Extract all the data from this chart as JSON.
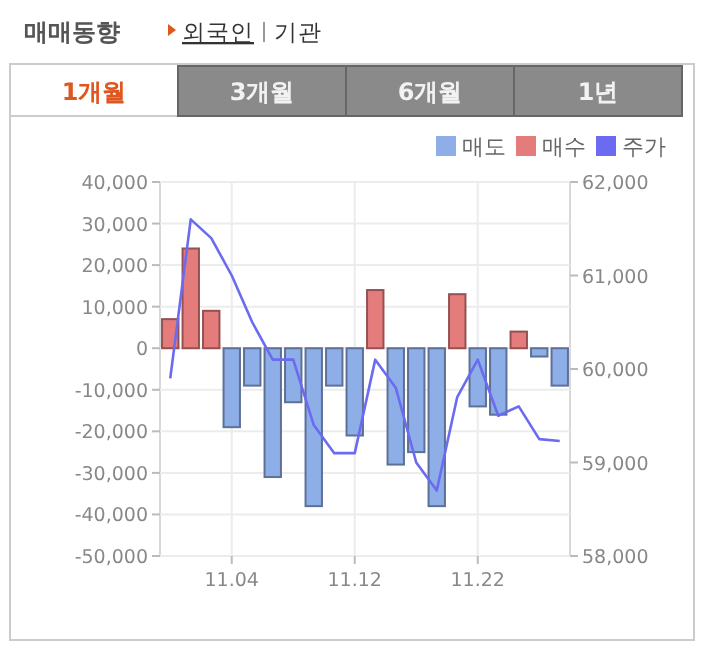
{
  "chart_data": {
    "type": "bar",
    "title": "매매동향",
    "annotations": [
      "외국인",
      "기관",
      "1개월",
      "3개월",
      "6개월",
      "1년"
    ],
    "categories": [
      null,
      null,
      null,
      "11.04",
      null,
      null,
      null,
      null,
      null,
      "11.12",
      null,
      null,
      null,
      null,
      null,
      "11.22",
      null,
      null,
      null,
      null
    ],
    "series": [
      {
        "name": "매도",
        "color": "#8eaee8",
        "values": [
          null,
          null,
          null,
          -19000,
          -9000,
          -31000,
          -13000,
          -38000,
          -9000,
          -21000,
          null,
          -28000,
          -25000,
          -38000,
          null,
          -14000,
          -16000,
          null,
          -2000,
          -9000
        ]
      },
      {
        "name": "매수",
        "color": "#e57c7c",
        "values": [
          7000,
          24000,
          9000,
          null,
          null,
          null,
          null,
          null,
          null,
          null,
          14000,
          null,
          null,
          null,
          13000,
          null,
          null,
          4000,
          null,
          null
        ]
      },
      {
        "name": "주가",
        "type": "line",
        "axis": "y2",
        "color": "#6b6bf2",
        "values": [
          59900,
          61600,
          61400,
          61000,
          60500,
          60100,
          60100,
          59400,
          59100,
          59100,
          60100,
          59800,
          59000,
          58700,
          59700,
          60100,
          59500,
          59600,
          59250,
          59230
        ]
      }
    ],
    "ylim": [
      -50000,
      40000
    ],
    "yticks": [
      {
        "value": -50000,
        "label": "-50,000"
      },
      {
        "value": -40000,
        "label": "-40,000"
      },
      {
        "value": -30000,
        "label": "-30,000"
      },
      {
        "value": -20000,
        "label": "-20,000"
      },
      {
        "value": -10000,
        "label": "-10,000"
      },
      0,
      {
        "value": 10000,
        "label": "10,000"
      },
      {
        "value": 20000,
        "label": "20,000"
      },
      {
        "value": 30000,
        "label": "30,000"
      },
      {
        "value": 40000,
        "label": "40,000"
      }
    ],
    "y2lim": [
      58000,
      62000
    ],
    "y2ticks": [
      {
        "value": 58000,
        "label": "58,000"
      },
      {
        "value": 59000,
        "label": "59,000"
      },
      {
        "value": 60000,
        "label": "60,000"
      },
      {
        "value": 61000,
        "label": "61,000"
      },
      {
        "value": 62000,
        "label": "62,000"
      }
    ],
    "grid": true,
    "legend": "top right"
  }
}
